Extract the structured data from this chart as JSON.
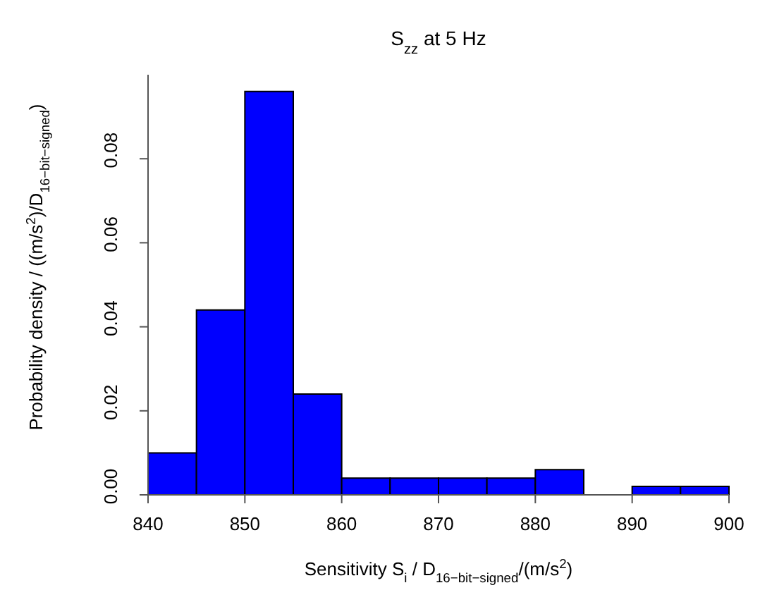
{
  "chart_data": {
    "type": "histogram",
    "title": "S$_{zz}$ at 5 Hz",
    "xlabel": "Sensitivity S$_{i}$ / D$_{16−bit−signed}$/(m/s$^{2}$)",
    "ylabel": "Probability density / ((m/s$^{2}$)/D$_{16−bit−signed}$)",
    "bins": [
      840,
      845,
      850,
      855,
      860,
      865,
      870,
      875,
      880,
      885,
      890,
      895,
      900
    ],
    "values": [
      0.01,
      0.044,
      0.096,
      0.024,
      0.004,
      0.004,
      0.004,
      0.004,
      0.006,
      0,
      0.002,
      0.002
    ],
    "color": "#0000ff",
    "xlim": [
      840,
      900
    ],
    "xticks": [
      840,
      850,
      860,
      870,
      880,
      890,
      900
    ],
    "ylim": [
      0,
      0.1
    ],
    "yticks": [
      {
        "value": 0,
        "label": "0.00"
      },
      {
        "value": 0.02,
        "label": "0.02"
      },
      {
        "value": 0.04,
        "label": "0.04"
      },
      {
        "value": 0.06,
        "label": "0.06"
      },
      {
        "value": 0.08,
        "label": "0.08"
      }
    ],
    "grid": false
  }
}
